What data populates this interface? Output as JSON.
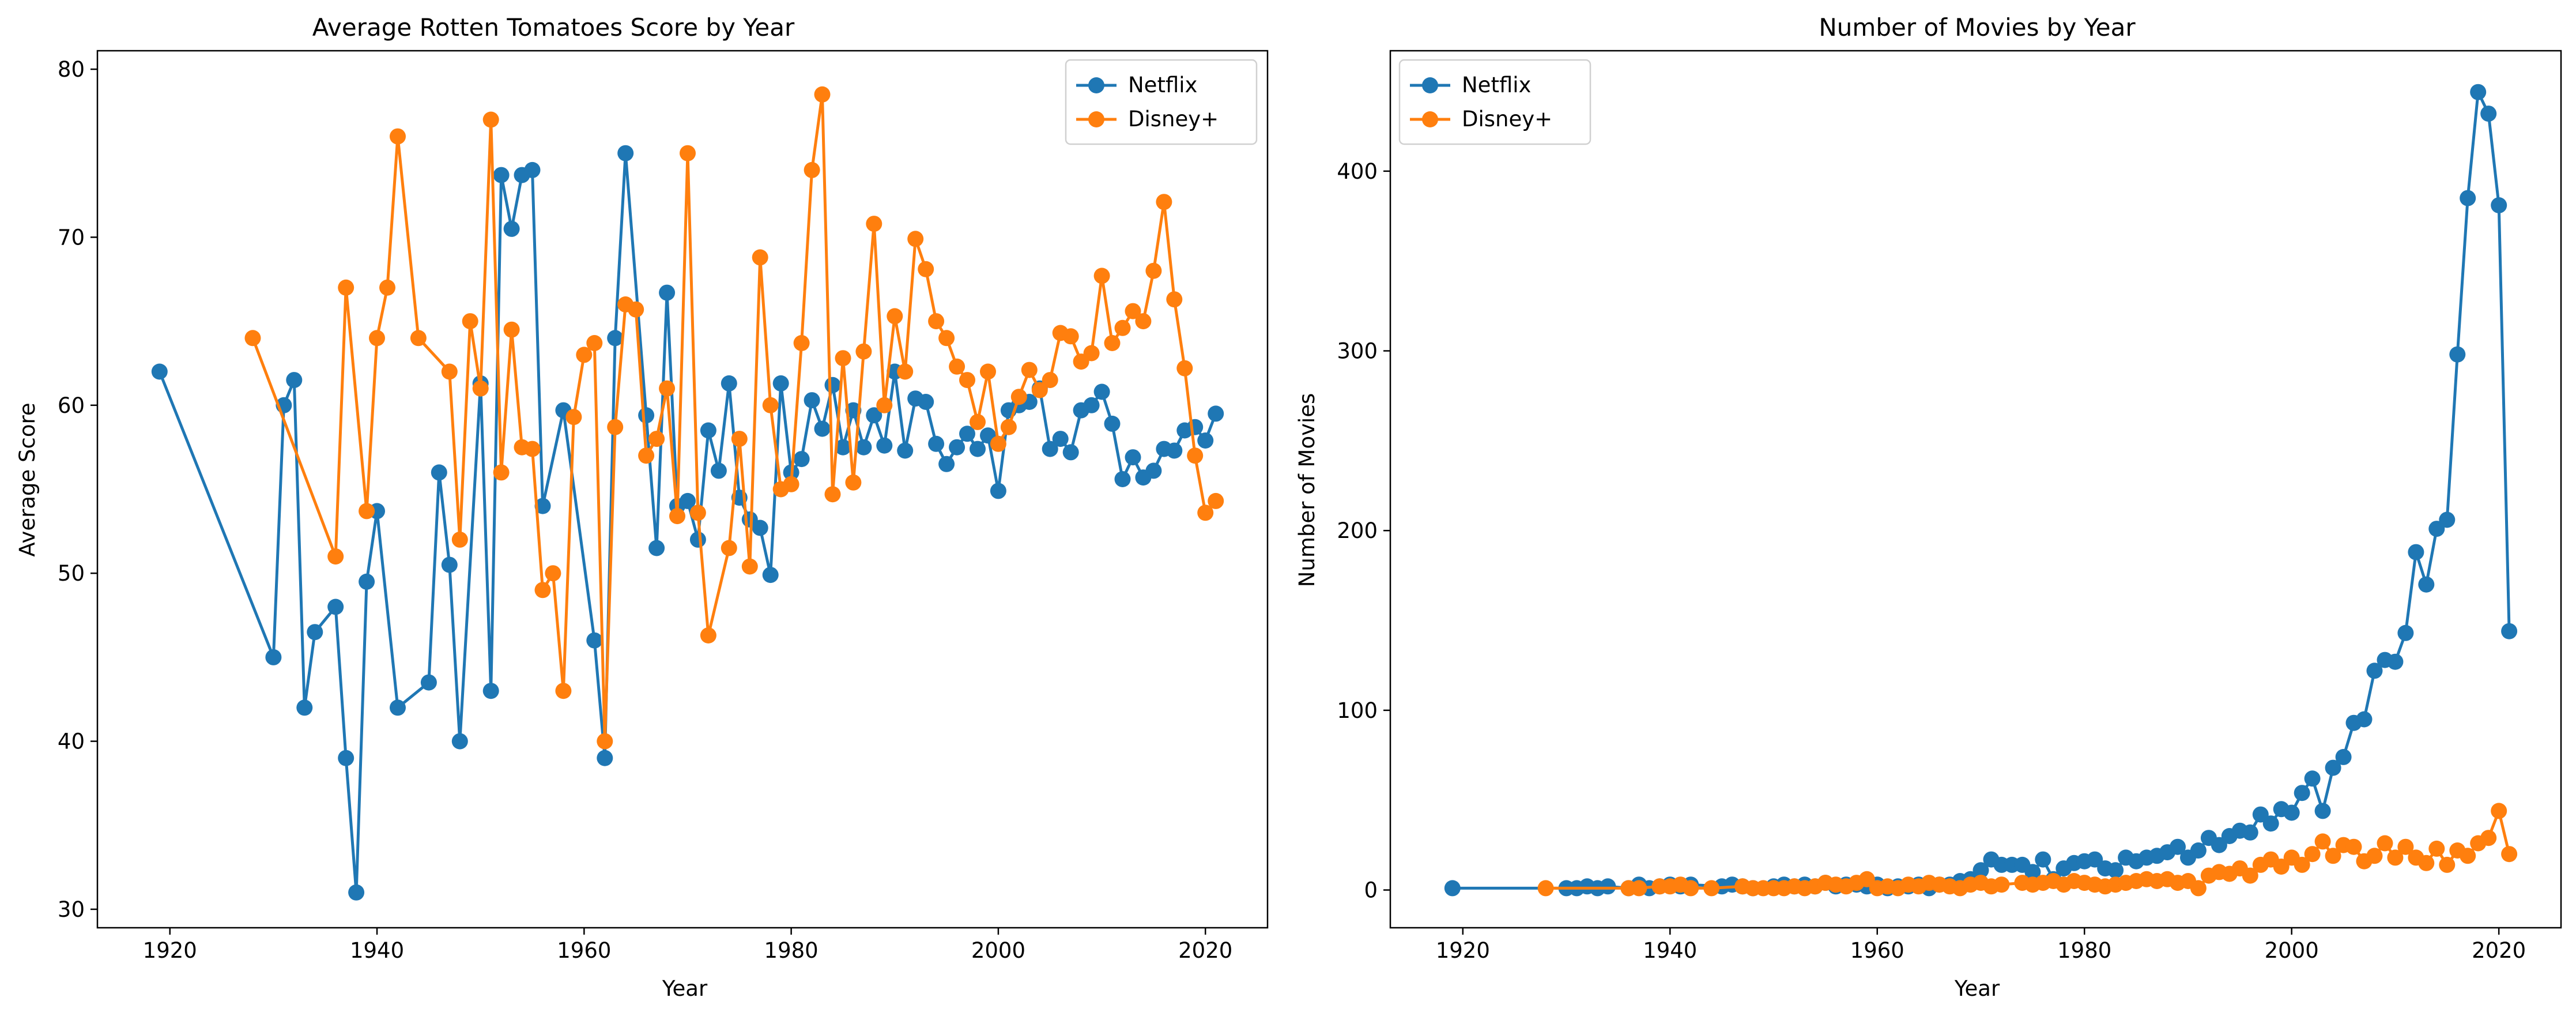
{
  "chart_data": [
    {
      "type": "line",
      "title": "Average Rotten Tomatoes Score by Year",
      "xlabel": "Year",
      "ylabel": "Average Score",
      "xlim": [
        1913,
        2026
      ],
      "ylim": [
        28.9,
        81.1
      ],
      "xticks": [
        1920,
        1940,
        1960,
        1980,
        2000,
        2020
      ],
      "yticks": [
        30,
        40,
        50,
        60,
        70,
        80
      ],
      "grid": false,
      "legend": "upper right",
      "series": [
        {
          "name": "Netflix",
          "color": "#1f77b4",
          "x": [
            1919,
            1930,
            1931,
            1932,
            1933,
            1934,
            1936,
            1937,
            1938,
            1939,
            1940,
            1942,
            1945,
            1946,
            1947,
            1948,
            1950,
            1951,
            1952,
            1953,
            1954,
            1955,
            1956,
            1958,
            1961,
            1962,
            1963,
            1964,
            1966,
            1967,
            1968,
            1969,
            1970,
            1971,
            1972,
            1973,
            1974,
            1975,
            1976,
            1977,
            1978,
            1979,
            1980,
            1981,
            1982,
            1983,
            1984,
            1985,
            1986,
            1987,
            1988,
            1989,
            1990,
            1991,
            1992,
            1993,
            1994,
            1995,
            1996,
            1997,
            1998,
            1999,
            2000,
            2001,
            2002,
            2003,
            2004,
            2005,
            2006,
            2007,
            2008,
            2009,
            2010,
            2011,
            2012,
            2013,
            2014,
            2015,
            2016,
            2017,
            2018,
            2019,
            2020,
            2021
          ],
          "y": [
            62.0,
            45.0,
            60.0,
            61.5,
            42.0,
            46.5,
            48.0,
            39.0,
            31.0,
            49.5,
            53.7,
            42.0,
            43.5,
            56.0,
            50.5,
            40.0,
            61.3,
            43.0,
            73.7,
            70.5,
            73.7,
            74.0,
            54.0,
            59.7,
            46.0,
            39.0,
            64.0,
            75.0,
            59.4,
            51.5,
            66.7,
            54.0,
            54.3,
            52.0,
            58.5,
            56.1,
            61.3,
            54.5,
            53.2,
            52.7,
            49.9,
            61.3,
            56.0,
            56.8,
            60.3,
            58.6,
            61.2,
            57.5,
            59.7,
            57.5,
            59.4,
            57.6,
            62.0,
            57.3,
            60.4,
            60.2,
            57.7,
            56.5,
            57.5,
            58.3,
            57.4,
            58.2,
            54.9,
            59.7,
            60.0,
            60.2,
            61.0,
            57.4,
            58.0,
            57.2,
            59.7,
            60.0,
            60.8,
            58.9,
            55.6,
            56.9,
            55.7,
            56.1,
            57.4,
            57.3,
            58.5,
            58.7,
            57.9,
            59.5
          ]
        },
        {
          "name": "Disney+",
          "color": "#ff7f0e",
          "x": [
            1928,
            1936,
            1937,
            1939,
            1940,
            1941,
            1942,
            1944,
            1947,
            1948,
            1949,
            1950,
            1951,
            1952,
            1953,
            1954,
            1955,
            1956,
            1957,
            1958,
            1959,
            1960,
            1961,
            1962,
            1963,
            1964,
            1965,
            1966,
            1967,
            1968,
            1969,
            1970,
            1971,
            1972,
            1974,
            1975,
            1976,
            1977,
            1978,
            1979,
            1980,
            1981,
            1982,
            1983,
            1984,
            1985,
            1986,
            1987,
            1988,
            1989,
            1990,
            1991,
            1992,
            1993,
            1994,
            1995,
            1996,
            1997,
            1998,
            1999,
            2000,
            2001,
            2002,
            2003,
            2004,
            2005,
            2006,
            2007,
            2008,
            2009,
            2010,
            2011,
            2012,
            2013,
            2014,
            2015,
            2016,
            2017,
            2018,
            2019,
            2020,
            2021
          ],
          "y": [
            64.0,
            51.0,
            67.0,
            53.7,
            64.0,
            67.0,
            76.0,
            64.0,
            62.0,
            52.0,
            65.0,
            61.0,
            77.0,
            56.0,
            64.5,
            57.5,
            57.4,
            49.0,
            50.0,
            43.0,
            59.3,
            63.0,
            63.7,
            40.0,
            58.7,
            66.0,
            65.7,
            57.0,
            58.0,
            61.0,
            53.4,
            75.0,
            53.6,
            46.3,
            51.5,
            58.0,
            50.4,
            68.8,
            60.0,
            55.0,
            55.3,
            63.7,
            74.0,
            78.5,
            54.7,
            62.8,
            55.4,
            63.2,
            70.8,
            60.0,
            65.3,
            62.0,
            69.9,
            68.1,
            65.0,
            64.0,
            62.3,
            61.5,
            59.0,
            62.0,
            57.7,
            58.7,
            60.5,
            62.1,
            60.9,
            61.5,
            64.3,
            64.1,
            62.6,
            63.1,
            67.7,
            63.7,
            64.6,
            65.6,
            65.0,
            68.0,
            72.1,
            66.3,
            62.2,
            57.0,
            53.6,
            54.3
          ]
        }
      ]
    },
    {
      "type": "line",
      "title": "Number of Movies by Year",
      "xlabel": "Year",
      "ylabel": "Number of Movies",
      "xlim": [
        1913,
        2026
      ],
      "ylim": [
        -21,
        467
      ],
      "xticks": [
        1920,
        1940,
        1960,
        1980,
        2000,
        2020
      ],
      "yticks": [
        0,
        100,
        200,
        300,
        400
      ],
      "grid": false,
      "legend": "upper left",
      "series": [
        {
          "name": "Netflix",
          "color": "#1f77b4",
          "x": [
            1919,
            1930,
            1931,
            1932,
            1933,
            1934,
            1936,
            1937,
            1938,
            1939,
            1940,
            1941,
            1942,
            1945,
            1946,
            1947,
            1948,
            1950,
            1951,
            1952,
            1953,
            1954,
            1955,
            1956,
            1957,
            1958,
            1959,
            1960,
            1961,
            1962,
            1963,
            1964,
            1965,
            1966,
            1967,
            1968,
            1969,
            1970,
            1971,
            1972,
            1973,
            1974,
            1975,
            1976,
            1977,
            1978,
            1979,
            1980,
            1981,
            1982,
            1983,
            1984,
            1985,
            1986,
            1987,
            1988,
            1989,
            1990,
            1991,
            1992,
            1993,
            1994,
            1995,
            1996,
            1997,
            1998,
            1999,
            2000,
            2001,
            2002,
            2003,
            2004,
            2005,
            2006,
            2007,
            2008,
            2009,
            2010,
            2011,
            2012,
            2013,
            2014,
            2015,
            2016,
            2017,
            2018,
            2019,
            2020,
            2021
          ],
          "y": [
            1,
            1,
            1,
            2,
            1,
            2,
            1,
            3,
            1,
            2,
            3,
            2,
            3,
            2,
            3,
            2,
            1,
            2,
            3,
            2,
            3,
            2,
            4,
            2,
            3,
            3,
            2,
            3,
            1,
            2,
            2,
            3,
            1,
            3,
            3,
            5,
            6,
            11,
            17,
            14,
            14,
            14,
            10,
            17,
            6,
            12,
            15,
            16,
            17,
            12,
            11,
            18,
            16,
            18,
            19,
            21,
            24,
            18,
            22,
            29,
            25,
            30,
            33,
            32,
            42,
            37,
            45,
            43,
            54,
            62,
            44,
            68,
            74,
            93,
            95,
            122,
            128,
            127,
            143,
            188,
            170,
            201,
            206,
            298,
            385,
            444,
            432,
            381,
            144
          ]
        },
        {
          "name": "Disney+",
          "color": "#ff7f0e",
          "x": [
            1928,
            1936,
            1937,
            1939,
            1940,
            1941,
            1942,
            1944,
            1947,
            1948,
            1949,
            1950,
            1951,
            1952,
            1953,
            1954,
            1955,
            1956,
            1957,
            1958,
            1959,
            1960,
            1961,
            1962,
            1963,
            1964,
            1965,
            1966,
            1967,
            1968,
            1969,
            1970,
            1971,
            1972,
            1974,
            1975,
            1976,
            1977,
            1978,
            1979,
            1980,
            1981,
            1982,
            1983,
            1984,
            1985,
            1986,
            1987,
            1988,
            1989,
            1990,
            1991,
            1992,
            1993,
            1994,
            1995,
            1996,
            1997,
            1998,
            1999,
            2000,
            2001,
            2002,
            2003,
            2004,
            2005,
            2006,
            2007,
            2008,
            2009,
            2010,
            2011,
            2012,
            2013,
            2014,
            2015,
            2016,
            2017,
            2018,
            2019,
            2020,
            2021
          ],
          "y": [
            1,
            1,
            1,
            2,
            2,
            3,
            1,
            1,
            2,
            1,
            1,
            1,
            1,
            2,
            1,
            2,
            4,
            3,
            2,
            4,
            6,
            1,
            2,
            1,
            3,
            2,
            4,
            3,
            2,
            1,
            3,
            4,
            2,
            3,
            4,
            3,
            4,
            5,
            3,
            5,
            4,
            3,
            2,
            3,
            4,
            5,
            6,
            5,
            6,
            4,
            5,
            1,
            8,
            10,
            9,
            12,
            8,
            14,
            17,
            13,
            18,
            14,
            20,
            27,
            19,
            25,
            24,
            16,
            19,
            26,
            18,
            24,
            18,
            15,
            23,
            14,
            22,
            19,
            26,
            29,
            44,
            20
          ]
        }
      ]
    }
  ]
}
